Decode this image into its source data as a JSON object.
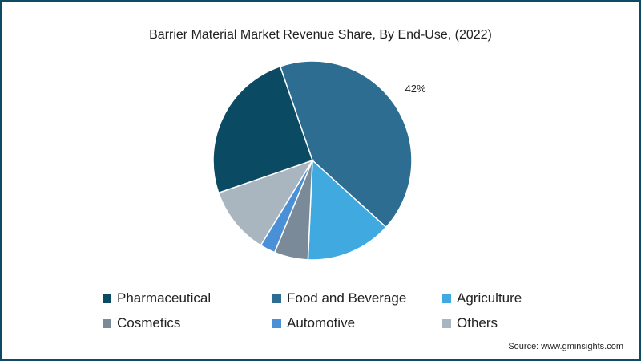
{
  "chart_data": {
    "type": "pie",
    "title": "Barrier Material Market Revenue Share, By End-Use, (2022)",
    "source": "Source: www.gminsights.com",
    "slices": [
      {
        "label": "Food and Beverage",
        "value": 42,
        "color": "#2e6d92",
        "data_label": "42%"
      },
      {
        "label": "Agriculture",
        "value": 14,
        "color": "#3fa9e0",
        "data_label": ""
      },
      {
        "label": "Cosmetics",
        "value": 5.5,
        "color": "#7b8a98",
        "data_label": ""
      },
      {
        "label": "Automotive",
        "value": 2.5,
        "color": "#4a90d6",
        "data_label": ""
      },
      {
        "label": "Others",
        "value": 11,
        "color": "#a9b5bf",
        "data_label": ""
      },
      {
        "label": "Pharmaceutical",
        "value": 25,
        "color": "#0b4a63",
        "data_label": ""
      }
    ],
    "legend": [
      {
        "label": "Pharmaceutical",
        "color": "#0b4a63"
      },
      {
        "label": "Food and Beverage",
        "color": "#2e6d92"
      },
      {
        "label": "Agriculture",
        "color": "#3fa9e0"
      },
      {
        "label": "Cosmetics",
        "color": "#7b8a98"
      },
      {
        "label": "Automotive",
        "color": "#4a90d6"
      },
      {
        "label": "Others",
        "color": "#a9b5bf"
      }
    ],
    "legend_placement": "bottom"
  }
}
